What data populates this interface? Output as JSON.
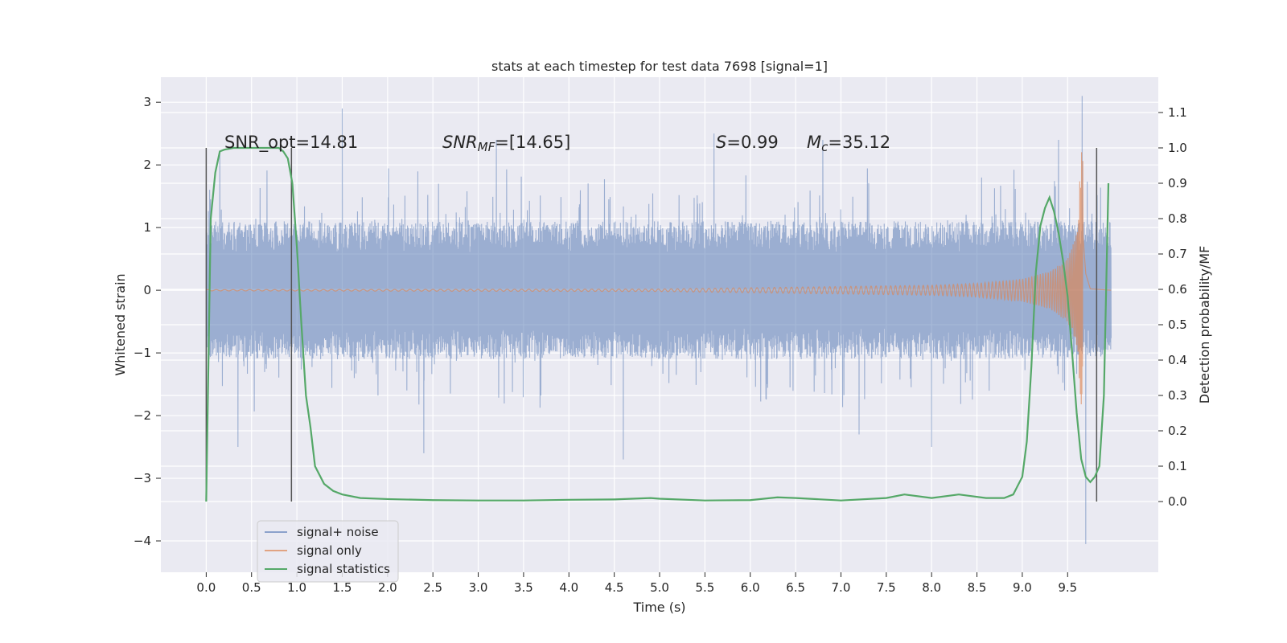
{
  "chart_data": {
    "type": "line",
    "title": "stats at each timestep for test data 7698 [signal=1]",
    "xlabel": "Time (s)",
    "ylabel": "Whitened strain",
    "ylabel_right": "Detection probability/MF",
    "xlim": [
      -0.5,
      10.5
    ],
    "ylim": [
      -4.5,
      3.4
    ],
    "ylim_right": [
      -0.2,
      1.2
    ],
    "x_ticks": [
      "0.0",
      "0.5",
      "1.0",
      "1.5",
      "2.0",
      "2.5",
      "3.0",
      "3.5",
      "4.0",
      "4.5",
      "5.0",
      "5.5",
      "6.0",
      "6.5",
      "7.0",
      "7.5",
      "8.0",
      "8.5",
      "9.0",
      "9.5"
    ],
    "y_ticks": [
      "−4",
      "−3",
      "−2",
      "−1",
      "0",
      "1",
      "2",
      "3"
    ],
    "y_ticks_right": [
      "0.0",
      "0.1",
      "0.2",
      "0.3",
      "0.4",
      "0.5",
      "0.6",
      "0.7",
      "0.8",
      "0.9",
      "1.0",
      "1.1"
    ],
    "grid": true,
    "legend_position": "lower-left",
    "annotations": {
      "snr_opt": "SNR_opt=14.81",
      "snr_mf_base": "SNR",
      "snr_mf_sub": "MF",
      "snr_mf_value": "=[14.65]",
      "s_sym": "S",
      "s_value": "=0.99",
      "mc_base": "M",
      "mc_sub": "c",
      "mc_value": "=35.12"
    },
    "vertical_markers_x": [
      0.0,
      0.94,
      9.82
    ],
    "series": [
      {
        "name": "signal+ noise",
        "color": "#4c72b0",
        "description": "whitened noisy strain, roughly ±1.1 envelope with spikes up to ~2.9 and a peak of 3.1 near 9.66 s",
        "x_range": [
          0.0,
          9.98
        ],
        "envelope": 1.1,
        "spikes": [
          [
            0.15,
            2.2
          ],
          [
            0.35,
            -2.5
          ],
          [
            1.5,
            2.9
          ],
          [
            2.4,
            -2.6
          ],
          [
            3.2,
            2.4
          ],
          [
            4.6,
            -2.7
          ],
          [
            5.6,
            2.5
          ],
          [
            6.8,
            2.4
          ],
          [
            7.2,
            -2.3
          ],
          [
            8.0,
            -2.5
          ],
          [
            9.4,
            2.4
          ],
          [
            9.66,
            3.1
          ],
          [
            9.7,
            -4.05
          ]
        ]
      },
      {
        "name": "signal only",
        "color": "#dd8452",
        "description": "chirp signal with amplitude growing toward merger",
        "x": [
          0.0,
          5.0,
          6.0,
          7.0,
          8.0,
          8.5,
          9.0,
          9.3,
          9.5,
          9.6,
          9.66,
          9.7,
          9.75,
          9.98
        ],
        "amplitude": [
          0.01,
          0.02,
          0.04,
          0.06,
          0.08,
          0.11,
          0.18,
          0.3,
          0.5,
          0.9,
          2.4,
          0.6,
          0.05,
          0.0
        ]
      },
      {
        "name": "signal statistics",
        "color": "#55a868",
        "axis": "right",
        "x": [
          0.0,
          0.05,
          0.1,
          0.15,
          0.2,
          0.3,
          0.4,
          0.5,
          0.6,
          0.7,
          0.8,
          0.85,
          0.9,
          0.95,
          1.0,
          1.05,
          1.1,
          1.15,
          1.2,
          1.3,
          1.4,
          1.5,
          1.7,
          2.0,
          2.5,
          3.0,
          3.5,
          4.0,
          4.5,
          4.9,
          5.0,
          5.5,
          6.0,
          6.3,
          6.5,
          7.0,
          7.5,
          7.7,
          8.0,
          8.3,
          8.6,
          8.8,
          8.9,
          9.0,
          9.05,
          9.1,
          9.15,
          9.2,
          9.25,
          9.3,
          9.35,
          9.4,
          9.45,
          9.5,
          9.55,
          9.6,
          9.65,
          9.7,
          9.75,
          9.8,
          9.85,
          9.9,
          9.95
        ],
        "values": [
          0.0,
          0.8,
          0.93,
          0.99,
          0.995,
          1.0,
          1.0,
          1.0,
          1.0,
          1.0,
          1.0,
          0.99,
          0.97,
          0.9,
          0.72,
          0.5,
          0.3,
          0.21,
          0.1,
          0.05,
          0.03,
          0.02,
          0.01,
          0.007,
          0.004,
          0.003,
          0.003,
          0.005,
          0.006,
          0.01,
          0.008,
          0.003,
          0.004,
          0.012,
          0.01,
          0.003,
          0.01,
          0.02,
          0.01,
          0.02,
          0.01,
          0.01,
          0.02,
          0.07,
          0.17,
          0.38,
          0.65,
          0.78,
          0.83,
          0.86,
          0.82,
          0.76,
          0.68,
          0.58,
          0.42,
          0.25,
          0.12,
          0.07,
          0.055,
          0.07,
          0.1,
          0.3,
          0.9
        ]
      }
    ]
  }
}
